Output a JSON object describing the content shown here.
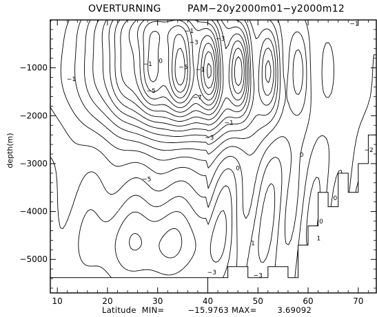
{
  "chart_data": {
    "type": "contour",
    "title_left": "OVERTURNING",
    "title_right": "PAM−20y2000m01−y2000m12",
    "xlabel": "Latitude",
    "ylabel": "depth(m)",
    "stats": {
      "min_label": "MIN=",
      "min_value": "−15.9763",
      "max_label": "MAX=",
      "max_value": "3.69092"
    },
    "x_ticks": [
      "10",
      "20",
      "30",
      "40",
      "50",
      "60",
      "70"
    ],
    "x_tick_values": [
      10,
      20,
      30,
      40,
      50,
      60,
      70
    ],
    "y_ticks": [
      "−1000",
      "−2000",
      "−3000",
      "−4000",
      "−5000"
    ],
    "y_tick_values": [
      -1000,
      -2000,
      -3000,
      -4000,
      -5000
    ],
    "xlim": [
      8.6,
      73.6
    ],
    "ylim": [
      -5700,
      0
    ],
    "grid": false,
    "line_styles": {
      "positive": "solid",
      "negative": "dashed"
    },
    "contour_labels": [
      {
        "text": "−1",
        "x": 12.8,
        "y": -1280
      },
      {
        "text": "−1",
        "x": 28.0,
        "y": -960
      },
      {
        "text": "−1",
        "x": 36.3,
        "y": -270
      },
      {
        "text": "−1",
        "x": 38.5,
        "y": -1080
      },
      {
        "text": "−1",
        "x": 69.2,
        "y": -120
      },
      {
        "text": "−3",
        "x": 37.2,
        "y": -510
      },
      {
        "text": "−3",
        "x": 42.5,
        "y": -430
      },
      {
        "text": "−5",
        "x": 35.1,
        "y": -1030
      },
      {
        "text": "−5",
        "x": 28.7,
        "y": -1520
      },
      {
        "text": "−7",
        "x": 37.9,
        "y": -1660
      },
      {
        "text": "−3",
        "x": 40.3,
        "y": -2500
      },
      {
        "text": "−1",
        "x": 44.2,
        "y": -2190
      },
      {
        "text": "−5",
        "x": 27.8,
        "y": -3370
      },
      {
        "text": "0",
        "x": 30.6,
        "y": -900
      },
      {
        "text": "0",
        "x": 46.0,
        "y": -3140
      },
      {
        "text": "0",
        "x": 58.7,
        "y": -2860
      },
      {
        "text": "0",
        "x": 62.6,
        "y": -4250
      },
      {
        "text": "0",
        "x": 65.4,
        "y": -3760
      },
      {
        "text": "1",
        "x": 49.0,
        "y": -4700
      },
      {
        "text": "1",
        "x": 62.1,
        "y": -4600
      },
      {
        "text": "−3",
        "x": 40.8,
        "y": -5310
      },
      {
        "text": "−3",
        "x": 50.0,
        "y": -5380
      },
      {
        "text": "−2",
        "x": 72.1,
        "y": -2760
      }
    ]
  }
}
